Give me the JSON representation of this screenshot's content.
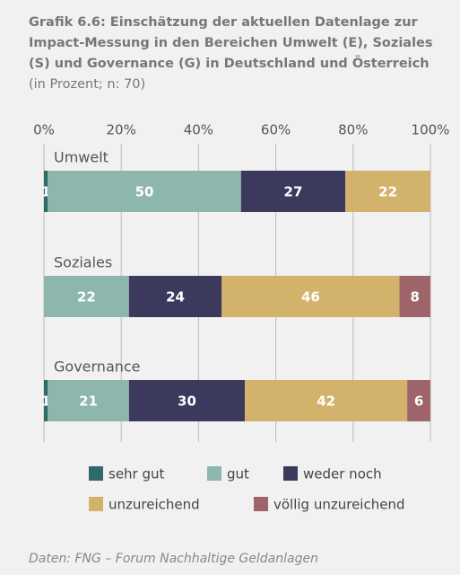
{
  "chart_data": {
    "type": "stacked-bar-horizontal",
    "title": "Grafik 6.6: Einschätzung der aktuellen Datenlage zur Impact-Messung in den Bereichen Umwelt (E), Soziales (S) und Governance (G) in Deutschland und Österreich",
    "subtitle": "(in Prozent; n: 70)",
    "categories": [
      "Umwelt",
      "Soziales",
      "Governance"
    ],
    "series": [
      {
        "name": "sehr gut",
        "color": "#2f6a6a",
        "values": [
          1,
          null,
          1
        ]
      },
      {
        "name": "gut",
        "color": "#8db7ad",
        "values": [
          50,
          22,
          21
        ]
      },
      {
        "name": "weder noch",
        "color": "#3c3a5c",
        "values": [
          27,
          24,
          30
        ]
      },
      {
        "name": "unzureichend",
        "color": "#d3b36b",
        "values": [
          22,
          46,
          42
        ]
      },
      {
        "name": "völlig unzureichend",
        "color": "#9f636a",
        "values": [
          null,
          8,
          6
        ]
      }
    ],
    "xlim": [
      0,
      100
    ],
    "xticks": [
      {
        "value": 0,
        "label": "0%"
      },
      {
        "value": 20,
        "label": "20%"
      },
      {
        "value": 40,
        "label": "40%"
      },
      {
        "value": 60,
        "label": "60%"
      },
      {
        "value": 80,
        "label": "80%"
      },
      {
        "value": 100,
        "label": "100%"
      }
    ],
    "grid": true,
    "legend": "bottom",
    "source": "Daten: FNG – Forum Nachhaltige Geldanlagen"
  }
}
